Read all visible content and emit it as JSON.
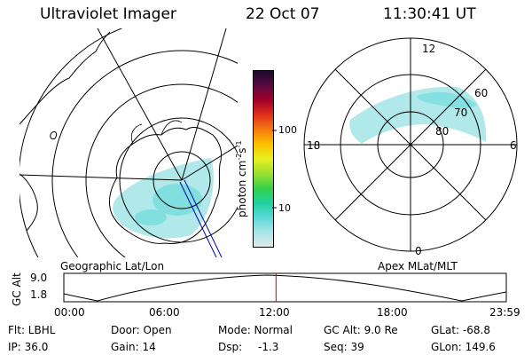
{
  "header": {
    "instrument": "Ultraviolet Imager",
    "date": "22 Oct 07",
    "time": "11:30:41 UT"
  },
  "geo_map": {
    "label": "Geographic Lat/Lon"
  },
  "apex_map": {
    "label": "Apex MLat/MLT",
    "lat_labels": [
      "60",
      "70",
      "80"
    ],
    "mlt_labels": {
      "top": "12",
      "left": "18",
      "right": "6",
      "bottom": "0"
    }
  },
  "colorbar": {
    "unit_label": "photon cm",
    "unit_exp1": "-2",
    "unit_mid": "s",
    "unit_exp2": "-1",
    "ticks": [
      "100",
      "10"
    ],
    "colors": [
      "#1a0a2e",
      "#5a0a40",
      "#a3002a",
      "#e0301c",
      "#f57a10",
      "#fbc000",
      "#e8f020",
      "#9be030",
      "#38d048",
      "#20d0a0",
      "#5ad8d8",
      "#a8e6e8",
      "#dfe9ea"
    ]
  },
  "altitude_plot": {
    "ylabel": "GC Alt",
    "yticks": [
      "9.0",
      "1.8"
    ],
    "xticks": [
      "00:00",
      "06:00",
      "12:00",
      "18:00",
      "23:59"
    ],
    "current_time_hours": 11.51,
    "marker_color": "#cc0000"
  },
  "status": {
    "flt": "Flt: LBHL",
    "ip": "IP: 36.0",
    "door": "Door: Open",
    "gain": "Gain: 14",
    "mode": "Mode: Normal",
    "dsp_label": "Dsp:",
    "dsp_value": "-1.3",
    "gc_alt": "GC Alt: 9.0 Re",
    "seq": "Seq: 39",
    "glat": "GLat: -68.8",
    "glon": "GLon: 149.6"
  }
}
